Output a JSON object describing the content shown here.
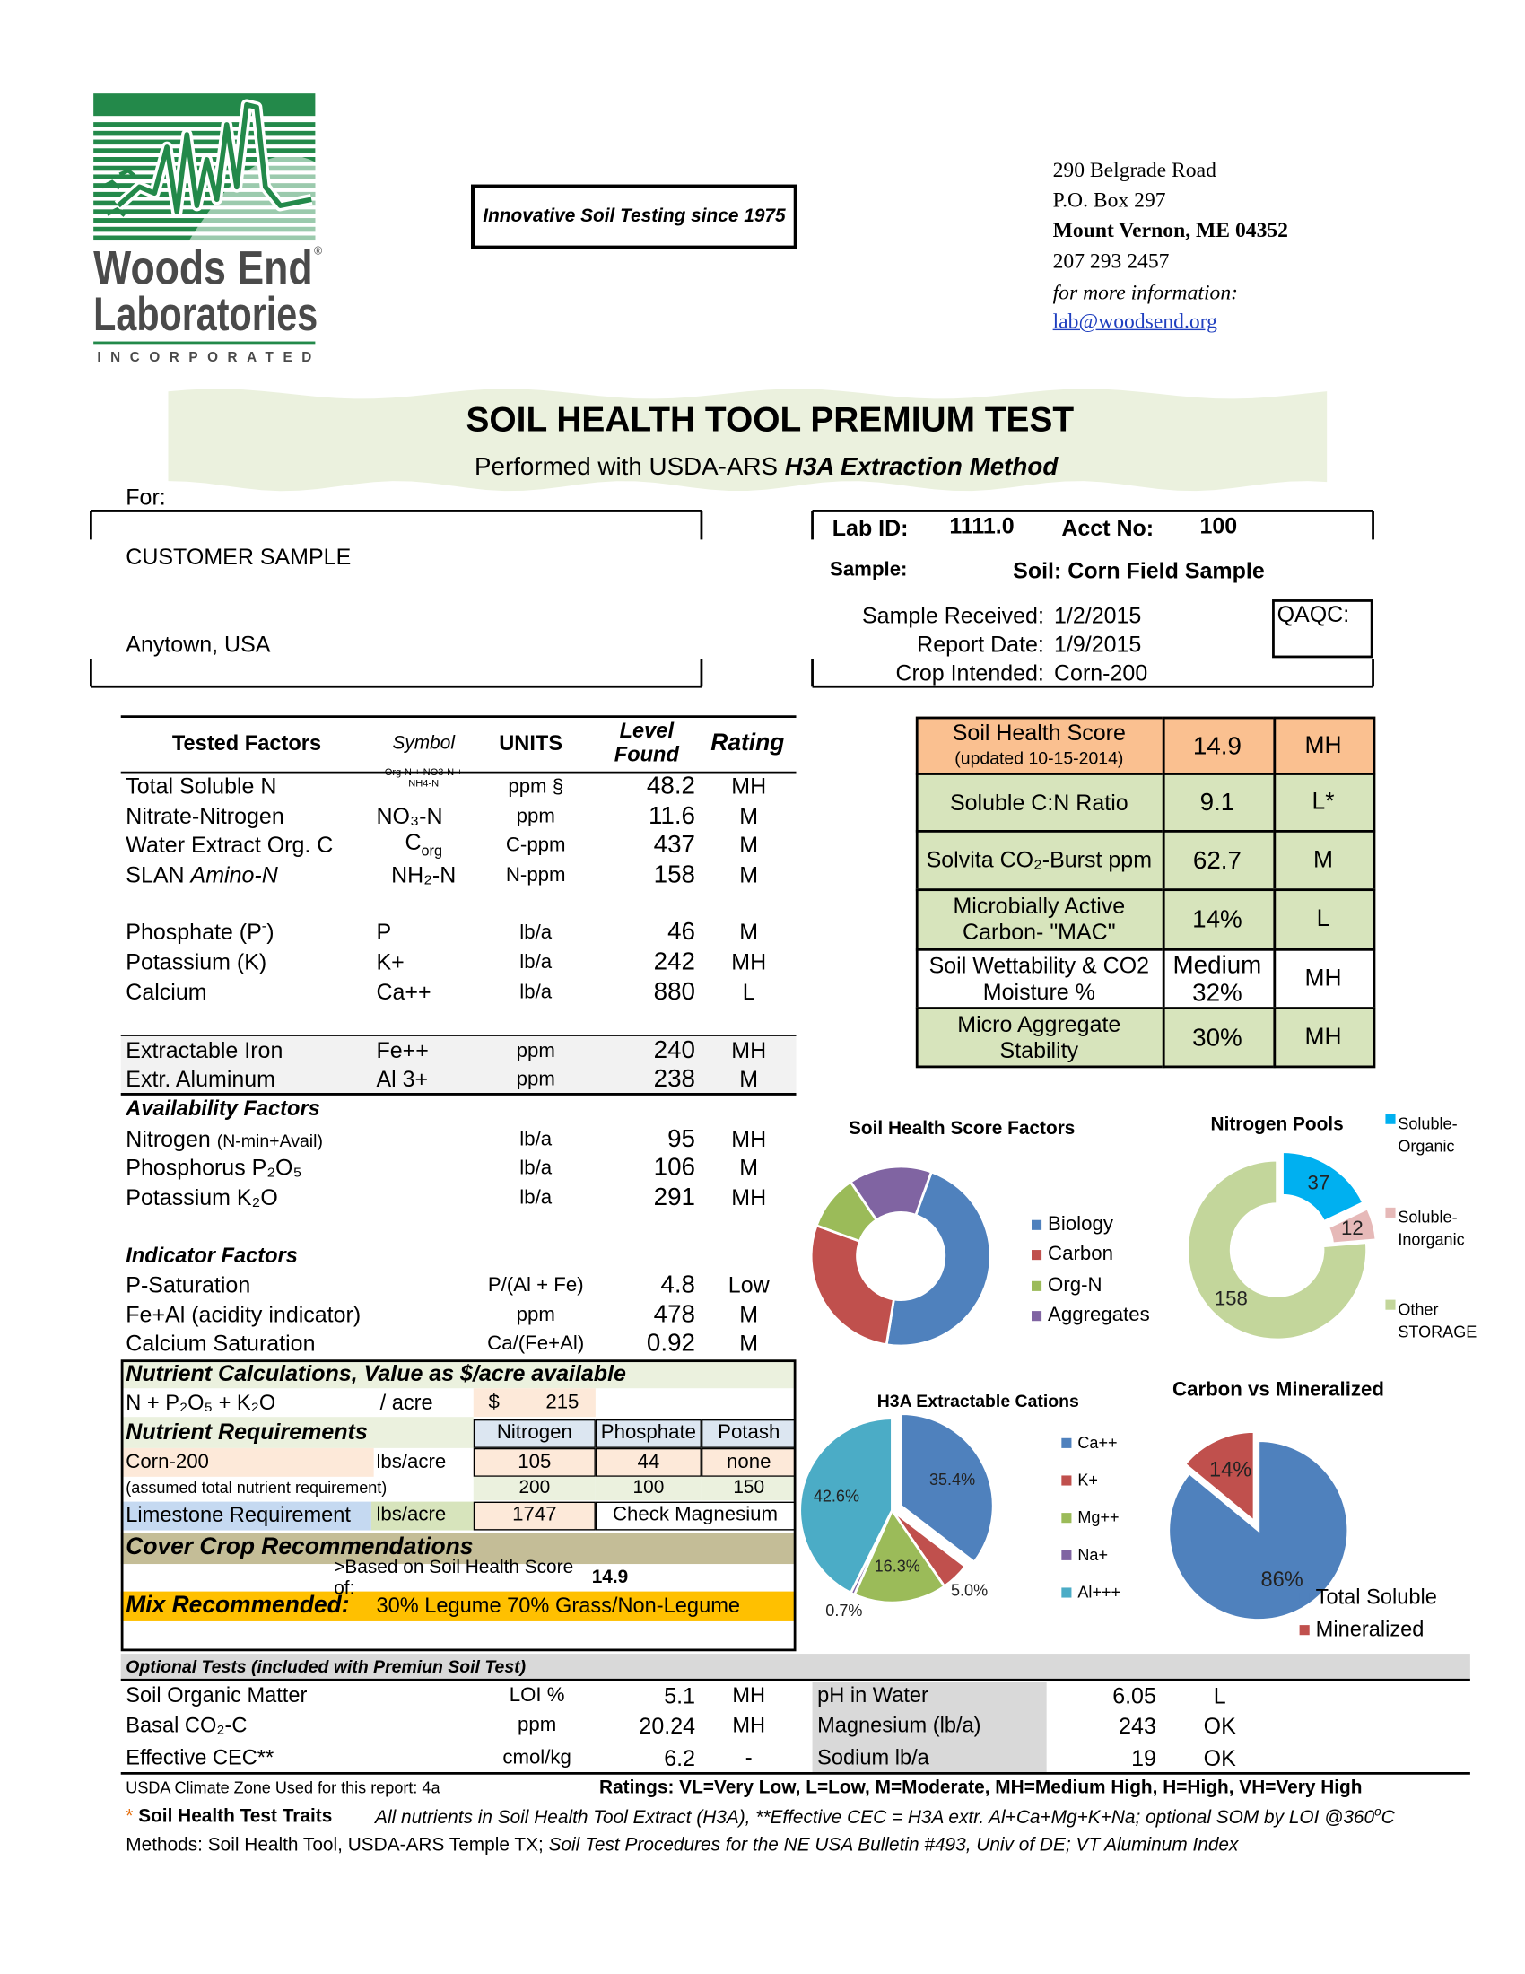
{
  "header": {
    "logo": {
      "line1": "Woods End",
      "reg": "®",
      "line2": "Laboratories",
      "line3": "INCORPORATED"
    },
    "tagline": "Innovative Soil Testing since 1975",
    "address": {
      "street": "290 Belgrade Road",
      "box": "P.O. Box 297",
      "city": "Mount Vernon, ME 04352",
      "phone": "207 293 2457",
      "info": "for more information:",
      "email": "lab@woodsend.org"
    }
  },
  "title": "SOIL HEALTH TOOL PREMIUM TEST",
  "subtitle": [
    "Performed with USDA-ARS ",
    {
      "bi": "H3A Extraction Method"
    }
  ],
  "customer": {
    "label": "For:",
    "name": "CUSTOMER SAMPLE",
    "location": "Anytown, USA"
  },
  "lab": {
    "lab_id_label": "Lab ID:",
    "lab_id": "1111.0",
    "acct_label": "Acct No:",
    "acct": "100",
    "sample_label": "Sample:",
    "sample": "Soil: Corn Field Sample",
    "received_label": "Sample Received:",
    "received": "1/2/2015",
    "report_label": "Report Date:",
    "report": "1/9/2015",
    "crop_label": "Crop Intended:",
    "crop": "Corn-200",
    "qaqc": "QAQC:"
  },
  "tested_factors": {
    "header": [
      "Tested Factors",
      "Symbol",
      "UNITS",
      "Level Found",
      "Rating"
    ],
    "rows": [
      {
        "name": "Total Soluble N",
        "symbol": "Org-N + NO3-N + NH4-N",
        "units": "ppm §",
        "level": "48.2",
        "rating": "MH"
      },
      {
        "name": "Nitrate-Nitrogen",
        "symbol": "NO₃-N",
        "units": "ppm",
        "level": "11.6",
        "rating": "M"
      },
      {
        "name": "Water Extract Org. C",
        "symbol": [
          "C",
          {
            "sub": "org"
          }
        ],
        "units": "C-ppm",
        "level": "437",
        "rating": "M"
      },
      {
        "name": [
          "SLAN ",
          {
            "i": "Amino-N"
          }
        ],
        "symbol": "NH₂-N",
        "units": "N-ppm",
        "level": "158",
        "rating": "M"
      },
      {
        "name": [
          "Phosphate (P",
          {
            "sup": "-"
          },
          ")"
        ],
        "symbol": "P",
        "units": "lb/a",
        "level": "46",
        "rating": "M"
      },
      {
        "name": "Potassium (K)",
        "symbol": "K+",
        "units": "lb/a",
        "level": "242",
        "rating": "MH"
      },
      {
        "name": "Calcium",
        "symbol": "Ca++",
        "units": "lb/a",
        "level": "880",
        "rating": "L"
      },
      {
        "name": "Extractable Iron",
        "symbol": "Fe++",
        "units": "ppm",
        "level": "240",
        "rating": "MH"
      },
      {
        "name": "Extr. Aluminum",
        "symbol": "Al 3+",
        "units": "ppm",
        "level": "238",
        "rating": "M"
      }
    ]
  },
  "availability": {
    "title": "Availability Factors",
    "rows": [
      {
        "name": [
          "Nitrogen ",
          {
            "small": "(N-min+Avail)"
          }
        ],
        "units": "lb/a",
        "level": "95",
        "rating": "MH"
      },
      {
        "name": "Phosphorus P₂O₅",
        "units": "lb/a",
        "level": "106",
        "rating": "M"
      },
      {
        "name": "Potassium K₂O",
        "units": "lb/a",
        "level": "291",
        "rating": "MH"
      }
    ]
  },
  "indicator": {
    "title": "Indicator Factors",
    "rows": [
      {
        "name": "P-Saturation",
        "units": "P/(Al + Fe)",
        "level": "4.8",
        "rating": "Low"
      },
      {
        "name": "Fe+Al (acidity indicator)",
        "units": "ppm",
        "level": "478",
        "rating": "M"
      },
      {
        "name": "Calcium Saturation",
        "units": "Ca/(Fe+Al)",
        "level": "0.92",
        "rating": "M"
      }
    ]
  },
  "nutrient_calculations": {
    "title": "Nutrient Calculations, Value as $/acre available",
    "total": {
      "label": "N + P₂O₅ + K₂O",
      "unit": "/ acre",
      "currency": "$",
      "value": "215"
    },
    "requirements": {
      "title": "Nutrient Requirements",
      "columns": [
        "Nitrogen",
        "Phosphate",
        "Potash"
      ],
      "crop": {
        "label": "Corn-200",
        "unit": "lbs/acre",
        "values": [
          "105",
          "44",
          "none"
        ]
      },
      "total": {
        "label": "(assumed total nutrient requirement)",
        "values": [
          "200",
          "100",
          "150"
        ]
      }
    },
    "limestone": {
      "label": "Limestone Requirement",
      "unit": "lbs/acre",
      "value": "1747",
      "note": "Check Magnesium"
    }
  },
  "cover_crop": {
    "title": "Cover Crop Recommendations",
    "basis_label": ">Based on Soil Health Score of:",
    "basis_value": "14.9",
    "mix_label": "Mix Recommended:",
    "mix": "30% Legume 70% Grass/Non-Legume"
  },
  "soil_health": {
    "rows": [
      {
        "label": "Soil Health Score",
        "note": "(updated 10-15-2014)",
        "value": "14.9",
        "rating": "MH"
      },
      {
        "label": "Soluble C:N Ratio",
        "value": "9.1",
        "rating": "L*"
      },
      {
        "label": "Solvita CO₂-Burst ppm",
        "value": "62.7",
        "rating": "M"
      },
      {
        "label": "Microbially Active Carbon- \"MAC\"",
        "value": "14%",
        "rating": "L"
      },
      {
        "label": "Soil Wettability & CO2 Moisture %",
        "value": "Medium 32%",
        "rating": "MH"
      },
      {
        "label": "Micro Aggregate Stability",
        "value": "30%",
        "rating": "MH"
      }
    ]
  },
  "chart_data": [
    {
      "type": "donut",
      "title": "Soil Health Score Factors",
      "categories": [
        "Biology",
        "Carbon",
        "Org-N",
        "Aggregates"
      ],
      "values": [
        47,
        28,
        10,
        15
      ],
      "colors": [
        "#4f81bd",
        "#c0504d",
        "#9bbb59",
        "#8064a2"
      ]
    },
    {
      "type": "donut",
      "title": "Nitrogen Pools",
      "categories": [
        "Soluble-Organic",
        "Soluble-Inorganic",
        "Other STORAGE"
      ],
      "values": [
        37,
        12,
        158
      ],
      "colors": [
        "#00b0f0",
        "#e6b9b8",
        "#c3d69b"
      ]
    },
    {
      "type": "pie",
      "title": "H3A Extractable Cations",
      "categories": [
        "Ca++",
        "K+",
        "Mg++",
        "Na+",
        "Al+++"
      ],
      "values": [
        35.4,
        5.0,
        16.3,
        0.7,
        42.6
      ],
      "value_labels": [
        "35.4%",
        "5.0%",
        "16.3%",
        "0.7%",
        "42.6%"
      ],
      "colors": [
        "#4f81bd",
        "#c0504d",
        "#9bbb59",
        "#8064a2",
        "#4bacc6"
      ]
    },
    {
      "type": "pie",
      "title": "Carbon vs Mineralized",
      "categories": [
        "Total Soluble",
        "Mineralized"
      ],
      "values": [
        86,
        14
      ],
      "value_labels": [
        "86%",
        "14%"
      ],
      "colors": [
        "#4f81bd",
        "#c0504d"
      ]
    }
  ],
  "optional_tests": {
    "title": "Optional Tests (included with Premiun Soil Test)",
    "left": [
      {
        "name": "Soil Organic Matter",
        "units": "LOI %",
        "value": "5.1",
        "rating": "MH"
      },
      {
        "name": "Basal CO₂-C",
        "units": "ppm",
        "value": "20.24",
        "rating": "MH"
      },
      {
        "name": "Effective CEC**",
        "units": "cmol/kg",
        "value": "6.2",
        "rating": "-"
      }
    ],
    "right": [
      {
        "name": "pH in Water",
        "value": "6.05",
        "rating": "L"
      },
      {
        "name": "Magnesium (lb/a)",
        "value": "243",
        "rating": "OK"
      },
      {
        "name": "Sodium lb/a",
        "value": "19",
        "rating": "OK"
      }
    ]
  },
  "footer": {
    "climate": "USDA Climate Zone Used for this report: 4a",
    "ratings": "Ratings: VL=Very Low,  L=Low, M=Moderate, MH=Medium High, H=High, VH=Very High",
    "traits": [
      {
        "star": "* "
      },
      {
        "b": "Soil Health Test Traits"
      }
    ],
    "notes": [
      "All nutrients in Soil Health Tool Extract (H3A), **Effective CEC = H3A extr. Al+Ca+Mg+K+Na; optional SOM by LOI @360",
      {
        "sup": "o"
      },
      "C"
    ],
    "methods": [
      "Methods: Soil Health Tool, USDA-ARS Temple TX; ",
      {
        "i": "Soil Test Procedures for the NE USA Bulletin #493, Univ of DE; VT Aluminum Index"
      }
    ]
  }
}
